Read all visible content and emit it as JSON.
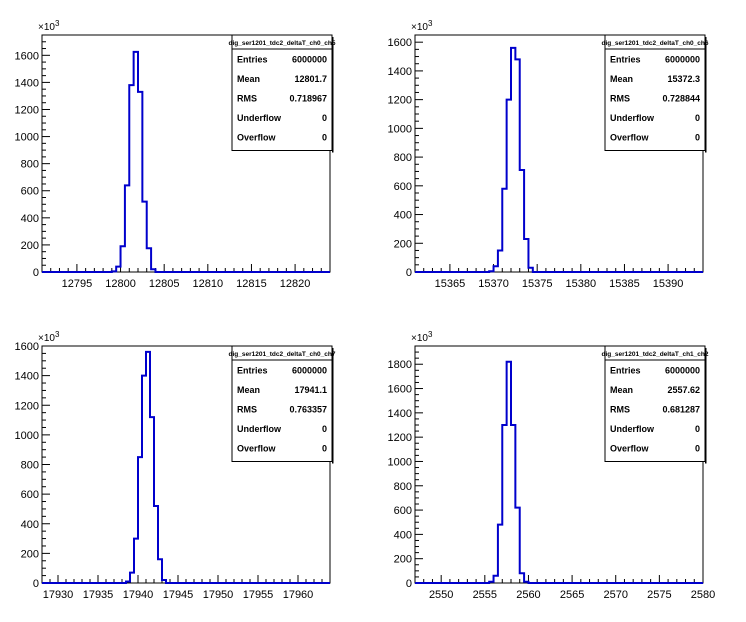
{
  "chart_data": [
    {
      "type": "histogram",
      "title": "dig_ser1201_tdc2_deltaT_ch0_ch5",
      "y_exponent": "×10",
      "y_exponent_power": "3",
      "x_ticks": [
        12795,
        12800,
        12805,
        12810,
        12815,
        12820
      ],
      "xlim": [
        12791,
        12824
      ],
      "y_ticks": [
        0,
        200,
        400,
        600,
        800,
        1000,
        1200,
        1400,
        1600
      ],
      "ylim": [
        0,
        1750
      ],
      "bin_width": 0.5,
      "bins_x": [
        12799.0,
        12799.5,
        12800.0,
        12800.5,
        12801.0,
        12801.5,
        12802.0,
        12802.5,
        12803.0,
        12803.5
      ],
      "bins_y": [
        5,
        40,
        190,
        640,
        1380,
        1625,
        1330,
        520,
        175,
        20
      ],
      "stats": [
        {
          "label": "Entries",
          "value": "6000000"
        },
        {
          "label": "Mean",
          "value": "12801.7"
        },
        {
          "label": "RMS",
          "value": "0.718967"
        },
        {
          "label": "Underflow",
          "value": "0"
        },
        {
          "label": "Overflow",
          "value": "0"
        }
      ]
    },
    {
      "type": "histogram",
      "title": "dig_ser1201_tdc2_deltaT_ch0_ch6",
      "y_exponent": "×10",
      "y_exponent_power": "3",
      "x_ticks": [
        15365,
        15370,
        15375,
        15380,
        15385,
        15390
      ],
      "xlim": [
        15361,
        15394
      ],
      "y_ticks": [
        0,
        200,
        400,
        600,
        800,
        1000,
        1200,
        1400,
        1600
      ],
      "ylim": [
        0,
        1650
      ],
      "bin_width": 0.5,
      "bins_x": [
        15369.5,
        15370.0,
        15370.5,
        15371.0,
        15371.5,
        15372.0,
        15372.5,
        15373.0,
        15373.5,
        15374.0
      ],
      "bins_y": [
        5,
        40,
        150,
        580,
        1200,
        1560,
        1480,
        710,
        230,
        30
      ],
      "stats": [
        {
          "label": "Entries",
          "value": "6000000"
        },
        {
          "label": "Mean",
          "value": "15372.3"
        },
        {
          "label": "RMS",
          "value": "0.728844"
        },
        {
          "label": "Underflow",
          "value": "0"
        },
        {
          "label": "Overflow",
          "value": "0"
        }
      ]
    },
    {
      "type": "histogram",
      "title": "dig_ser1201_tdc2_deltaT_ch0_ch7",
      "y_exponent": "×10",
      "y_exponent_power": "3",
      "x_ticks": [
        17930,
        17935,
        17940,
        17945,
        17950,
        17955,
        17960
      ],
      "xlim": [
        17928,
        17964
      ],
      "y_ticks": [
        0,
        200,
        400,
        600,
        800,
        1000,
        1200,
        1400,
        1600
      ],
      "ylim": [
        0,
        1600
      ],
      "bin_width": 0.5,
      "bins_x": [
        17938.5,
        17939.0,
        17939.5,
        17940.0,
        17940.5,
        17941.0,
        17941.5,
        17942.0,
        17942.5,
        17943.0
      ],
      "bins_y": [
        10,
        70,
        300,
        850,
        1400,
        1560,
        1120,
        520,
        160,
        20
      ],
      "stats": [
        {
          "label": "Entries",
          "value": "6000000"
        },
        {
          "label": "Mean",
          "value": "17941.1"
        },
        {
          "label": "RMS",
          "value": "0.763357"
        },
        {
          "label": "Underflow",
          "value": "0"
        },
        {
          "label": "Overflow",
          "value": "0"
        }
      ]
    },
    {
      "type": "histogram",
      "title": "dig_ser1201_tdc2_deltaT_ch1_ch2",
      "y_exponent": "×10",
      "y_exponent_power": "3",
      "x_ticks": [
        2550,
        2555,
        2560,
        2565,
        2570,
        2575,
        2580
      ],
      "xlim": [
        2547,
        2580
      ],
      "y_ticks": [
        0,
        200,
        400,
        600,
        800,
        1000,
        1200,
        1400,
        1600,
        1800
      ],
      "ylim": [
        0,
        1950
      ],
      "bin_width": 0.5,
      "bins_x": [
        2555.5,
        2556.0,
        2556.5,
        2557.0,
        2557.5,
        2558.0,
        2558.5,
        2559.0,
        2559.5
      ],
      "bins_y": [
        10,
        60,
        480,
        1300,
        1820,
        1300,
        620,
        80,
        10
      ],
      "stats": [
        {
          "label": "Entries",
          "value": "6000000"
        },
        {
          "label": "Mean",
          "value": "2557.62"
        },
        {
          "label": "RMS",
          "value": "0.681287"
        },
        {
          "label": "Underflow",
          "value": "0"
        },
        {
          "label": "Overflow",
          "value": "0"
        }
      ]
    }
  ],
  "colors": {
    "histogram_line": "#0000cc",
    "axis": "#000000",
    "background": "#ffffff"
  }
}
